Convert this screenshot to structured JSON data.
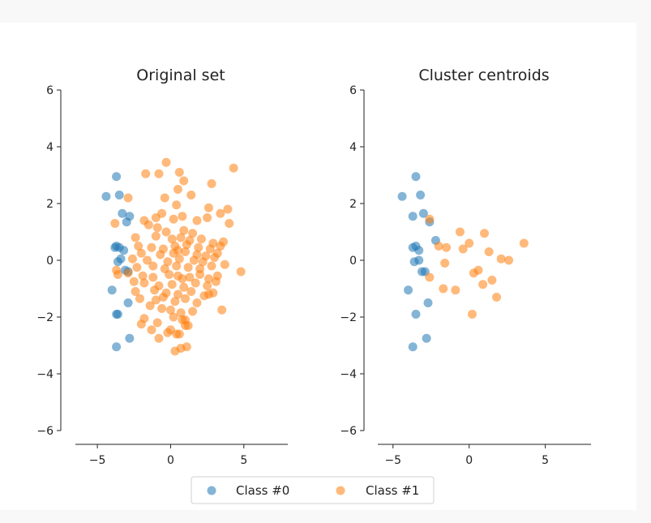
{
  "colors": {
    "class0": "#1f77b4",
    "class1": "#ff7f0e"
  },
  "legend": {
    "placement": "lower center",
    "items": [
      {
        "label": "Class #0",
        "color": "#1f77b4"
      },
      {
        "label": "Class #1",
        "color": "#ff7f0e"
      }
    ]
  },
  "chart_data": [
    {
      "type": "scatter",
      "title": "Original set",
      "xlim": [
        -6.5,
        8
      ],
      "ylim": [
        -6,
        6
      ],
      "xticks": [
        -5,
        0,
        5
      ],
      "xtick_labels": [
        "−5",
        "0",
        "5"
      ],
      "yticks": [
        -6,
        -4,
        -2,
        0,
        2,
        4,
        6
      ],
      "ytick_labels": [
        "−6",
        "−4",
        "−2",
        "0",
        "2",
        "4",
        "6"
      ],
      "grid": false,
      "series": [
        {
          "name": "Class #0",
          "x": [
            -4.4,
            -3.7,
            -3.5,
            -3.3,
            -3.0,
            -2.8,
            -3.8,
            -3.7,
            -3.5,
            -3.2,
            -3.6,
            -3.4,
            -3.1,
            -2.9,
            -4.0,
            -3.6,
            -2.9,
            -3.7,
            -2.8,
            -3.7
          ],
          "y": [
            2.25,
            2.95,
            2.3,
            1.65,
            1.35,
            1.55,
            0.45,
            0.5,
            0.45,
            0.35,
            -0.05,
            0.05,
            -0.35,
            -0.4,
            -1.05,
            -1.9,
            -1.5,
            -1.9,
            -2.75,
            -3.05
          ]
        },
        {
          "name": "Class #1",
          "x": [
            -0.3,
            0.6,
            0.9,
            -0.8,
            -1.7,
            0.5,
            1.4,
            2.8,
            4.3,
            -2.9,
            3.9,
            -0.4,
            0.4,
            2.6,
            -0.6,
            -1.0,
            -3.8,
            0.2,
            0.8,
            1.8,
            2.5,
            3.4,
            4.0,
            -1.8,
            -1.5,
            -0.9,
            -0.3,
            0.9,
            1.5,
            -2.4,
            -1.0,
            0.1,
            0.7,
            1.3,
            2.1,
            2.9,
            3.6,
            -2.2,
            -1.3,
            -0.5,
            0.3,
            1.1,
            1.9,
            2.7,
            3.4,
            -2.0,
            -0.7,
            0.2,
            1.0,
            1.8,
            2.4,
            3.2,
            -2.6,
            -1.6,
            -0.2,
            0.6,
            1.6,
            2.2,
            3.0,
            -2.3,
            -1.2,
            -0.4,
            0.4,
            1.2,
            2.0,
            2.8,
            3.7,
            4.8,
            -2.9,
            -3.7,
            -3.6,
            -1.9,
            -1.2,
            -0.1,
            0.5,
            1.3,
            2.0,
            2.6,
            3.2,
            -2.5,
            -1.8,
            -0.8,
            0.1,
            0.9,
            1.7,
            2.5,
            3.1,
            -2.4,
            -1.1,
            -0.3,
            0.5,
            1.4,
            2.3,
            2.9,
            -2.1,
            -1.0,
            -0.5,
            0.3,
            1.0,
            1.8,
            2.6,
            3.5,
            -1.4,
            -0.6,
            0.0,
            0.7,
            1.5,
            -1.8,
            -0.9,
            0.2,
            0.8,
            1.2,
            -2.0,
            -1.3,
            -0.2,
            0.4,
            1.0,
            -0.8,
            0.0,
            0.6,
            1.1,
            0.3,
            0.7,
            1.0,
            0.8,
            0.5
          ],
          "y": [
            3.45,
            3.1,
            2.8,
            3.05,
            3.05,
            2.5,
            2.3,
            2.7,
            3.25,
            2.2,
            1.8,
            2.2,
            1.95,
            1.85,
            1.65,
            1.5,
            1.3,
            1.45,
            1.55,
            1.4,
            1.5,
            1.65,
            1.3,
            1.4,
            1.25,
            1.15,
            1.0,
            1.05,
            0.95,
            0.8,
            0.85,
            0.75,
            0.8,
            0.7,
            0.75,
            0.6,
            0.65,
            0.5,
            0.45,
            0.4,
            0.5,
            0.55,
            0.45,
            0.4,
            0.5,
            0.25,
            0.2,
            0.25,
            0.3,
            0.2,
            0.15,
            0.25,
            0.05,
            0.0,
            -0.05,
            0.05,
            0.0,
            -0.05,
            0.1,
            -0.25,
            -0.2,
            -0.3,
            -0.2,
            -0.25,
            -0.3,
            -0.2,
            -0.15,
            -0.4,
            -0.45,
            -0.35,
            -0.5,
            -0.55,
            -0.6,
            -0.5,
            -0.55,
            -0.6,
            -0.5,
            -0.65,
            -0.55,
            -0.75,
            -0.8,
            -0.9,
            -0.85,
            -0.95,
            -0.8,
            -0.9,
            -0.75,
            -1.1,
            -1.05,
            -1.15,
            -1.2,
            -1.1,
            -1.25,
            -1.15,
            -1.35,
            -1.4,
            -1.3,
            -1.45,
            -1.35,
            -1.5,
            -1.2,
            -1.75,
            -1.6,
            -1.7,
            -1.75,
            -1.85,
            -1.8,
            -2.05,
            -2.2,
            -2.0,
            -2.1,
            -2.3,
            -2.25,
            -2.45,
            -2.55,
            -2.6,
            -2.3,
            -2.75,
            -2.45,
            -2.6,
            -3.05,
            -3.2,
            -3.1,
            -2.1,
            -0.65,
            0.35
          ]
        }
      ]
    },
    {
      "type": "scatter",
      "title": "Cluster centroids",
      "xlim": [
        -6.0,
        8.0
      ],
      "ylim": [
        -6,
        6
      ],
      "xticks": [
        -5,
        0,
        5
      ],
      "xtick_labels": [
        "−5",
        "0",
        "5"
      ],
      "yticks": [
        -6,
        -4,
        -2,
        0,
        2,
        4,
        6
      ],
      "ytick_labels": [
        "−6",
        "−4",
        "−2",
        "0",
        "2",
        "4",
        "6"
      ],
      "grid": false,
      "series": [
        {
          "name": "Class #0",
          "x": [
            -4.4,
            -3.5,
            -3.2,
            -3.0,
            -2.6,
            -3.7,
            -3.7,
            -3.5,
            -3.3,
            -3.6,
            -3.3,
            -3.1,
            -2.9,
            -4.0,
            -3.5,
            -2.7,
            -2.8,
            -3.7,
            -2.2
          ],
          "y": [
            2.25,
            2.95,
            2.3,
            1.65,
            1.35,
            1.55,
            0.45,
            0.5,
            0.35,
            -0.05,
            0.0,
            -0.4,
            -0.4,
            -1.05,
            -1.9,
            -1.5,
            -2.75,
            -3.05,
            0.7
          ]
        },
        {
          "name": "Class #1",
          "x": [
            -2.6,
            -0.6,
            1.0,
            -2.0,
            -1.5,
            0.0,
            2.6,
            3.6,
            -0.4,
            1.3,
            2.1,
            -1.6,
            0.6,
            -2.6,
            0.3,
            0.9,
            -1.7,
            -0.9,
            1.5,
            1.8,
            0.2
          ],
          "y": [
            1.45,
            1.0,
            0.95,
            0.5,
            0.45,
            0.6,
            0.0,
            0.6,
            0.4,
            0.3,
            0.05,
            -0.1,
            -0.35,
            -0.6,
            -0.45,
            -0.85,
            -1.0,
            -1.05,
            -0.7,
            -1.3,
            -1.9
          ]
        }
      ]
    }
  ]
}
